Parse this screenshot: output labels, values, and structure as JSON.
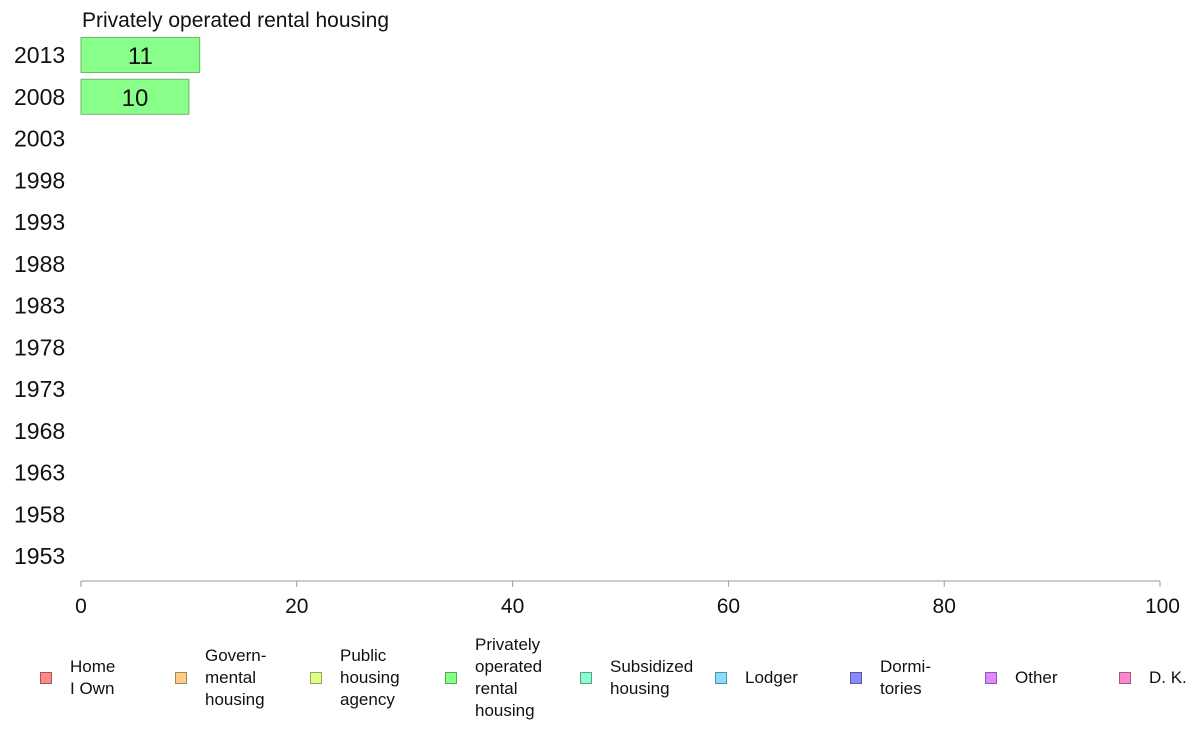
{
  "chart_data": {
    "type": "bar",
    "orientation": "horizontal",
    "title": "Privately operated rental housing",
    "categories": [
      "2013",
      "2008",
      "2003",
      "1998",
      "1993",
      "1988",
      "1983",
      "1978",
      "1973",
      "1968",
      "1963",
      "1958",
      "1953"
    ],
    "values": [
      11,
      10,
      null,
      null,
      null,
      null,
      null,
      null,
      null,
      null,
      null,
      null,
      null
    ],
    "data_labels": [
      "11",
      "10",
      "",
      "",
      "",
      "",
      "",
      "",
      "",
      "",
      "",
      "",
      ""
    ],
    "xlim": [
      0,
      100
    ],
    "xticks": [
      0,
      20,
      40,
      60,
      80,
      100
    ],
    "xlabel": "",
    "ylabel": "",
    "grid": false,
    "bar_color": "#88ff88",
    "legend_position": "bottom",
    "legend": [
      {
        "label": "Home\nI Own",
        "color": "#ff8888"
      },
      {
        "label": "Govern-\nmental\n housing",
        "color": "#ffcc88"
      },
      {
        "label": "Public\nhousing\nagency",
        "color": "#ddff88"
      },
      {
        "label": "Privately\noperated\nrental\nhousing",
        "color": "#88ff88"
      },
      {
        "label": "Subsidized\n housing",
        "color": "#88ffcc"
      },
      {
        "label": "Lodger",
        "color": "#88ddff"
      },
      {
        "label": "Dormi-\ntories",
        "color": "#8888ff"
      },
      {
        "label": "Other",
        "color": "#dd88ff"
      },
      {
        "label": "D. K.",
        "color": "#ff88cc"
      }
    ]
  }
}
